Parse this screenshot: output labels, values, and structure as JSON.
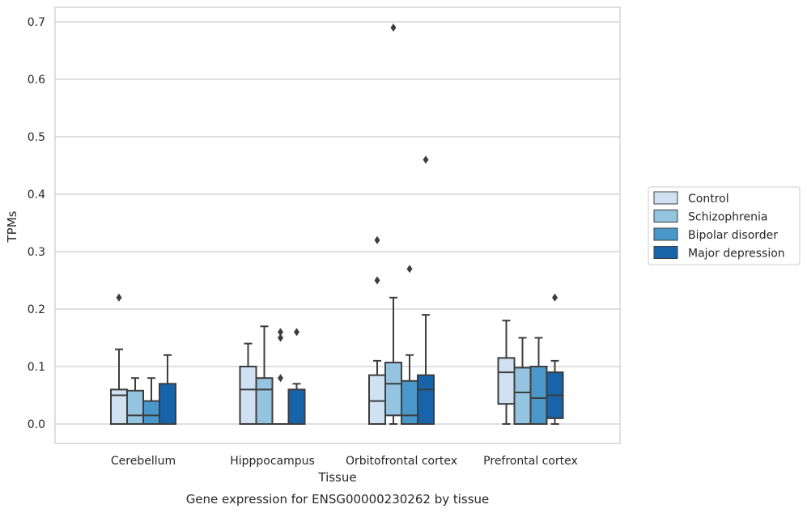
{
  "caption": "Gene expression for ENSG00000230262 by tissue",
  "chart_data": {
    "type": "box",
    "title": "",
    "xlabel": "Tissue",
    "ylabel": "TPMs",
    "ylim": [
      -0.033,
      0.727
    ],
    "yticks": [
      0.0,
      0.1,
      0.2,
      0.3,
      0.4,
      0.5,
      0.6,
      0.7
    ],
    "ytick_labels": [
      "0.0",
      "0.1",
      "0.2",
      "0.3",
      "0.4",
      "0.5",
      "0.6",
      "0.7"
    ],
    "grid": "horizontal",
    "legend_position": "right",
    "categories": [
      "Cerebellum",
      "Hipppocampus",
      "Orbitofrontal cortex",
      "Prefrontal cortex"
    ],
    "series": [
      {
        "name": "Control",
        "color": "#d0e1f2",
        "boxes": [
          {
            "whislo": 0.0,
            "q1": 0.0,
            "med": 0.05,
            "q3": 0.06,
            "whishi": 0.13,
            "fliers": [
              0.22
            ]
          },
          {
            "whislo": 0.0,
            "q1": 0.0,
            "med": 0.06,
            "q3": 0.1,
            "whishi": 0.14,
            "fliers": []
          },
          {
            "whislo": 0.0,
            "q1": 0.0,
            "med": 0.04,
            "q3": 0.085,
            "whishi": 0.11,
            "fliers": [
              0.25,
              0.32
            ]
          },
          {
            "whislo": 0.0,
            "q1": 0.035,
            "med": 0.09,
            "q3": 0.115,
            "whishi": 0.18,
            "fliers": []
          }
        ]
      },
      {
        "name": "Schizophrenia",
        "color": "#94c4df",
        "boxes": [
          {
            "whislo": 0.0,
            "q1": 0.0,
            "med": 0.015,
            "q3": 0.058,
            "whishi": 0.08,
            "fliers": []
          },
          {
            "whislo": 0.0,
            "q1": 0.0,
            "med": 0.06,
            "q3": 0.08,
            "whishi": 0.17,
            "fliers": []
          },
          {
            "whislo": 0.0,
            "q1": 0.015,
            "med": 0.07,
            "q3": 0.107,
            "whishi": 0.22,
            "fliers": [
              0.69
            ]
          },
          {
            "whislo": 0.0,
            "q1": 0.0,
            "med": 0.055,
            "q3": 0.098,
            "whishi": 0.15,
            "fliers": []
          }
        ]
      },
      {
        "name": "Bipolar disorder",
        "color": "#4a98c9",
        "boxes": [
          {
            "whislo": 0.0,
            "q1": 0.0,
            "med": 0.015,
            "q3": 0.04,
            "whishi": 0.08,
            "fliers": []
          },
          {
            "whislo": 0.0,
            "q1": 0.0,
            "med": 0.0,
            "q3": 0.0,
            "whishi": 0.0,
            "fliers": [
              0.08,
              0.15,
              0.16
            ]
          },
          {
            "whislo": 0.0,
            "q1": 0.0,
            "med": 0.015,
            "q3": 0.075,
            "whishi": 0.12,
            "fliers": [
              0.27
            ]
          },
          {
            "whislo": 0.0,
            "q1": 0.0,
            "med": 0.045,
            "q3": 0.1,
            "whishi": 0.15,
            "fliers": []
          }
        ]
      },
      {
        "name": "Major depression",
        "color": "#1764ab",
        "boxes": [
          {
            "whislo": 0.0,
            "q1": 0.0,
            "med": 0.0,
            "q3": 0.07,
            "whishi": 0.12,
            "fliers": []
          },
          {
            "whislo": 0.0,
            "q1": 0.0,
            "med": 0.0,
            "q3": 0.06,
            "whishi": 0.07,
            "fliers": [
              0.16
            ]
          },
          {
            "whislo": 0.0,
            "q1": 0.0,
            "med": 0.06,
            "q3": 0.085,
            "whishi": 0.19,
            "fliers": [
              0.46
            ]
          },
          {
            "whislo": 0.0,
            "q1": 0.01,
            "med": 0.05,
            "q3": 0.09,
            "whishi": 0.11,
            "fliers": [
              0.22
            ]
          }
        ]
      }
    ]
  }
}
